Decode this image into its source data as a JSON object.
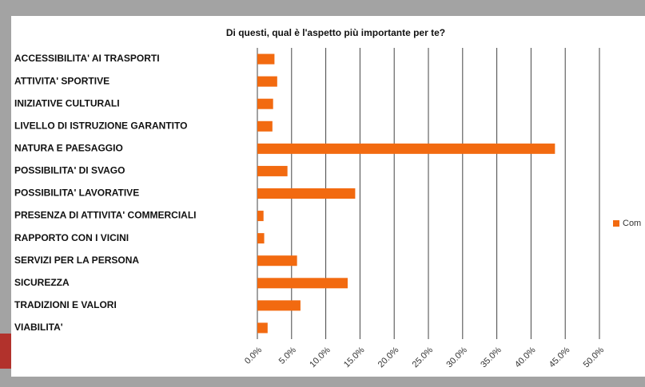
{
  "chart_data": {
    "type": "bar",
    "orientation": "horizontal",
    "title": "Di questi, qual è l'aspetto più importante per te?",
    "categories": [
      "ACCESSIBILITA' AI TRASPORTI",
      "ATTIVITA' SPORTIVE",
      "INIZIATIVE CULTURALI",
      "LIVELLO DI ISTRUZIONE GARANTITO",
      "NATURA E PAESAGGIO",
      "POSSIBILITA' DI SVAGO",
      "POSSIBILITA' LAVORATIVE",
      "PRESENZA DI ATTIVITA' COMMERCIALI",
      "RAPPORTO CON I VICINI",
      "SERVIZI PER LA PERSONA",
      "SICUREZZA",
      "TRADIZIONI E VALORI",
      "VIABILITA'"
    ],
    "series": [
      {
        "name": "Com",
        "color": "#f26a10",
        "values": [
          2.5,
          2.9,
          2.3,
          2.2,
          43.5,
          4.4,
          14.3,
          0.9,
          1.0,
          5.8,
          13.2,
          6.3,
          1.5
        ]
      }
    ],
    "xlim": [
      0,
      50
    ],
    "xticks": [
      {
        "value": 0,
        "label": "0.0%"
      },
      {
        "value": 5,
        "label": "5.0%"
      },
      {
        "value": 10,
        "label": "10.0%"
      },
      {
        "value": 15,
        "label": "15.0%"
      },
      {
        "value": 20,
        "label": "20.0%"
      },
      {
        "value": 25,
        "label": "25.0%"
      },
      {
        "value": 30,
        "label": "30.0%"
      },
      {
        "value": 35,
        "label": "35.0%"
      },
      {
        "value": 40,
        "label": "40.0%"
      },
      {
        "value": 45,
        "label": "45.0%"
      },
      {
        "value": 50,
        "label": "50.0%"
      }
    ],
    "grid": true,
    "legend": "right"
  }
}
